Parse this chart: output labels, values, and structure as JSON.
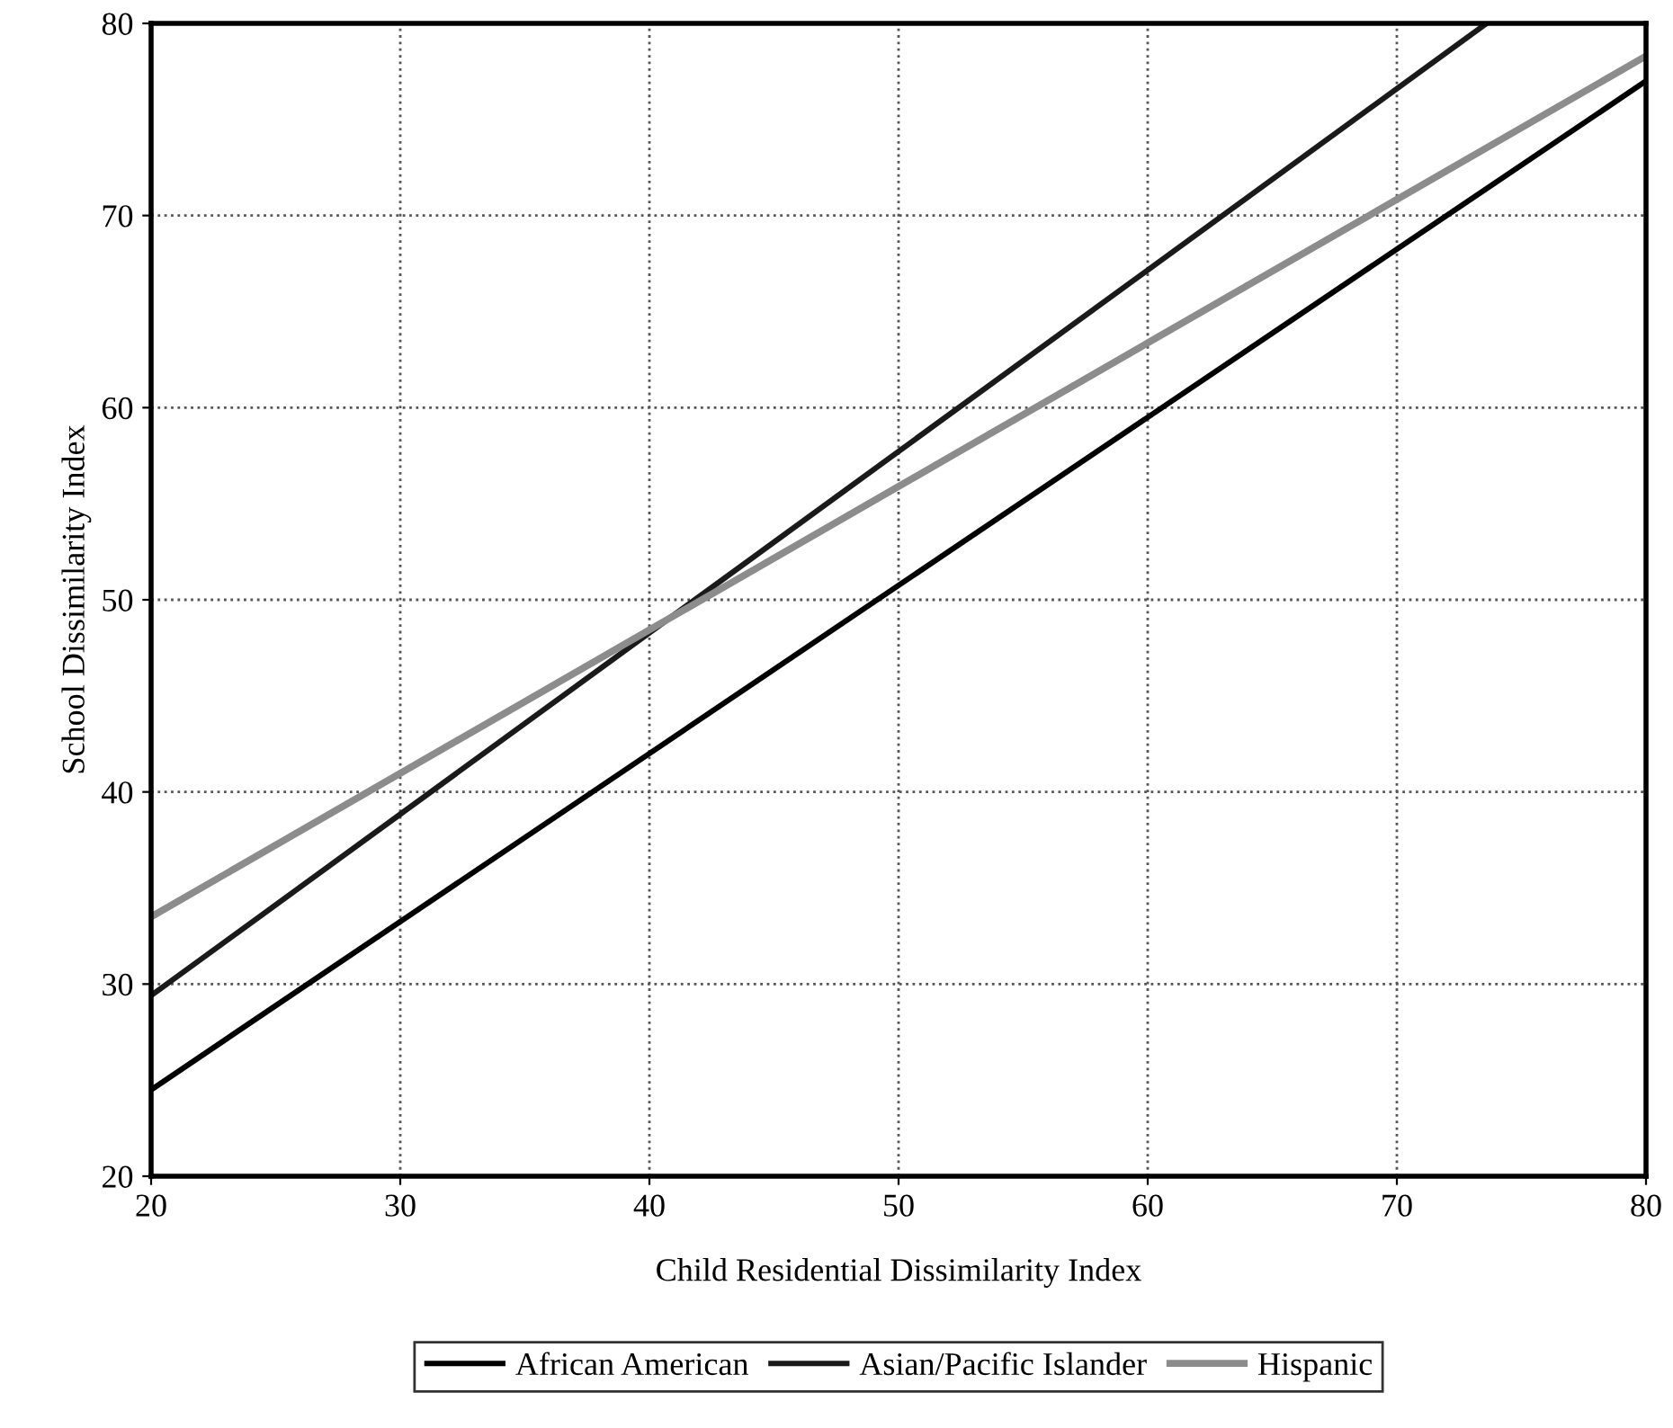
{
  "chart_data": {
    "type": "line",
    "xlabel": "Child Residential Dissimilarity Index",
    "ylabel": "School Dissimilarity Index",
    "xlim": [
      20,
      80
    ],
    "ylim": [
      20,
      80
    ],
    "xticks": [
      20,
      30,
      40,
      50,
      60,
      70,
      80
    ],
    "yticks": [
      20,
      30,
      40,
      50,
      60,
      70,
      80
    ],
    "grid": true,
    "legend": "bottom",
    "marker": "none",
    "series": [
      {
        "name": "African American",
        "color": "#000000",
        "x": [
          20,
          80
        ],
        "values": [
          24.5,
          77
        ]
      },
      {
        "name": "Asian/Pacific Islander",
        "color": "#1a1a1a",
        "x": [
          20,
          73.6
        ],
        "values": [
          29.4,
          80
        ]
      },
      {
        "name": "Hispanic",
        "color": "#8c8c8c",
        "x": [
          20,
          80
        ],
        "values": [
          33.5,
          78.3
        ]
      }
    ]
  }
}
